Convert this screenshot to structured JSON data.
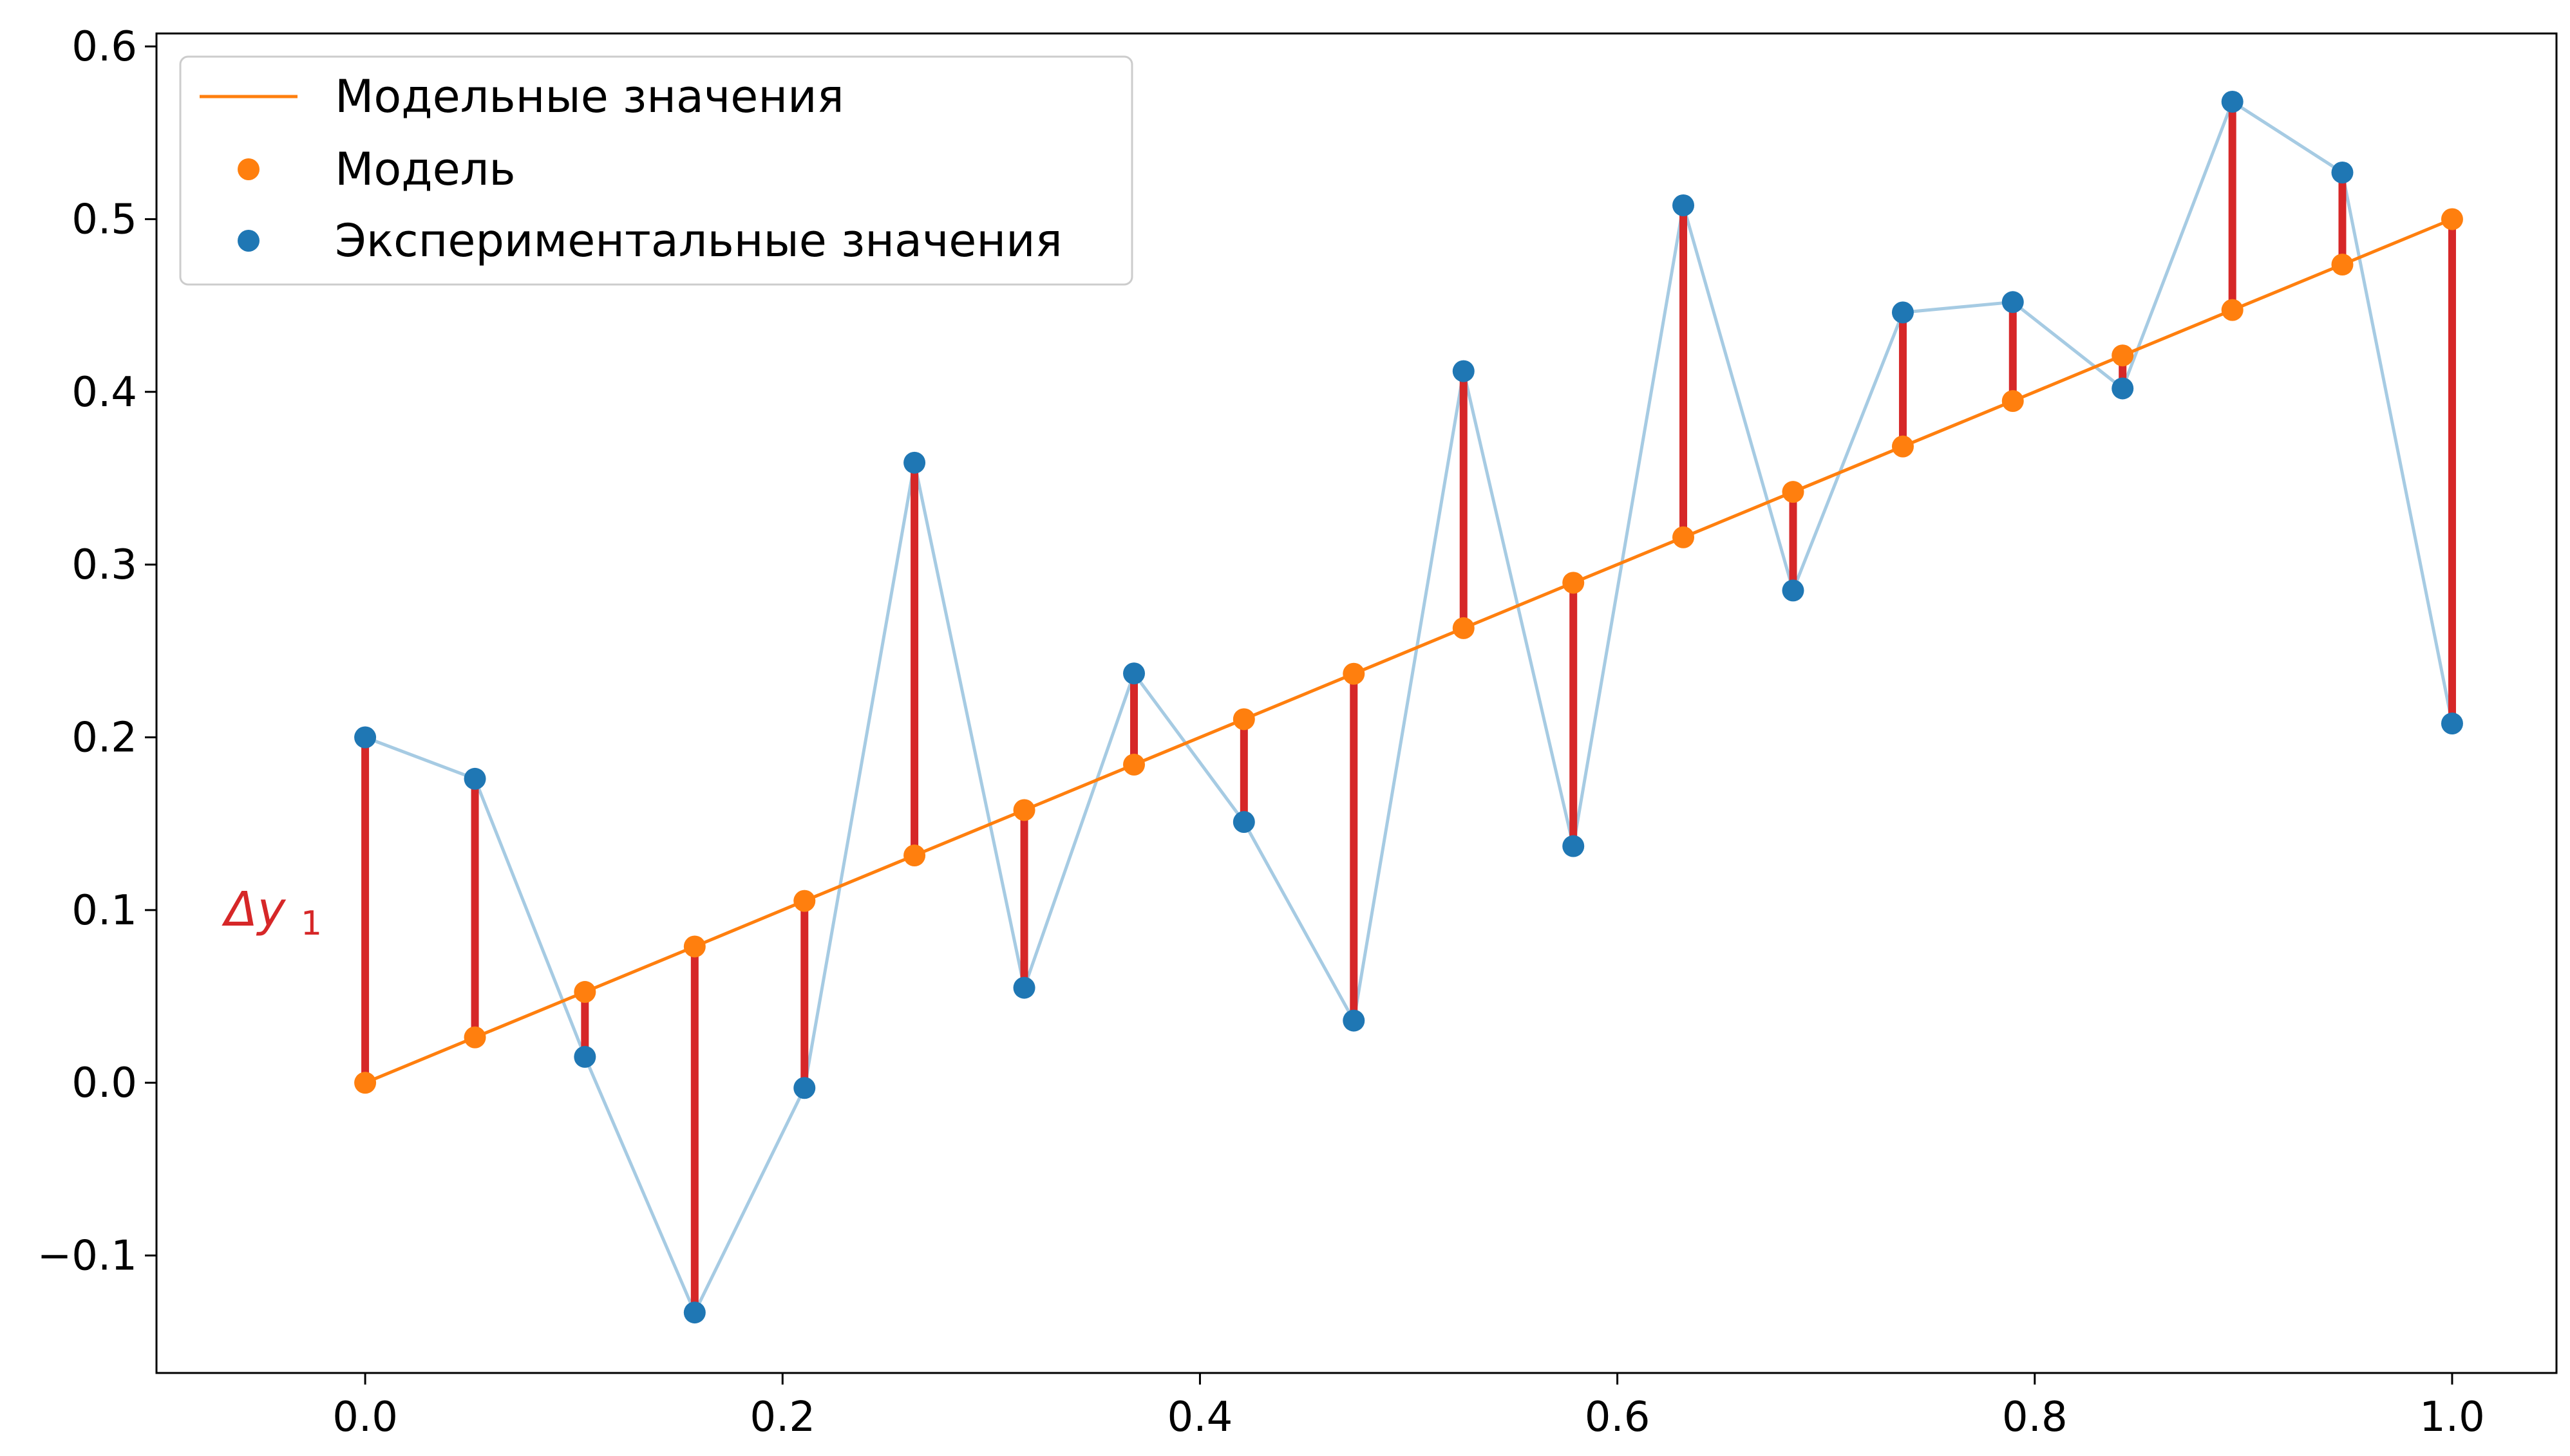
{
  "chart_data": {
    "type": "scatter",
    "xlim": [
      -0.1,
      1.05
    ],
    "ylim": [
      -0.168,
      0.6075
    ],
    "x_ticks": [
      "0.0",
      "0.2",
      "0.4",
      "0.6",
      "0.8",
      "1.0"
    ],
    "x_tick_values": [
      0.0,
      0.2,
      0.4,
      0.6,
      0.8,
      1.0
    ],
    "y_ticks": [
      "−0.1",
      "0.0",
      "0.1",
      "0.2",
      "0.3",
      "0.4",
      "0.5",
      "0.6"
    ],
    "y_tick_values": [
      -0.1,
      0.0,
      0.1,
      0.2,
      0.3,
      0.4,
      0.5,
      0.6
    ],
    "grid": false,
    "legend_position": "top-left",
    "x": [
      0.0,
      0.0526,
      0.1053,
      0.1579,
      0.2105,
      0.2632,
      0.3158,
      0.3684,
      0.4211,
      0.4737,
      0.5263,
      0.5789,
      0.6316,
      0.6842,
      0.7368,
      0.7895,
      0.8421,
      0.8947,
      0.9474,
      1.0
    ],
    "series": [
      {
        "name": "Модельные значения",
        "kind": "line",
        "color": "#ff7f0e",
        "values": [
          0.0,
          0.0263,
          0.0526,
          0.0789,
          0.1053,
          0.1316,
          0.1579,
          0.1842,
          0.2105,
          0.2368,
          0.2632,
          0.2895,
          0.3158,
          0.3421,
          0.3684,
          0.3947,
          0.4211,
          0.4474,
          0.4737,
          0.5
        ]
      },
      {
        "name": "Модель",
        "kind": "scatter",
        "color": "#ff7f0e",
        "values": [
          0.0,
          0.0263,
          0.0526,
          0.0789,
          0.1053,
          0.1316,
          0.1579,
          0.1842,
          0.2105,
          0.2368,
          0.2632,
          0.2895,
          0.3158,
          0.3421,
          0.3684,
          0.3947,
          0.4211,
          0.4474,
          0.4737,
          0.5
        ]
      },
      {
        "name": "Экспериментальные значения",
        "kind": "scatter",
        "color": "#1f77b4",
        "line_color": "#a6cbe3",
        "values": [
          0.2,
          0.176,
          0.015,
          -0.133,
          -0.003,
          0.359,
          0.055,
          0.237,
          0.151,
          0.036,
          0.412,
          0.137,
          0.508,
          0.285,
          0.446,
          0.452,
          0.402,
          0.568,
          0.527,
          0.208
        ]
      }
    ],
    "residual_color": "#d62728",
    "annotation": {
      "text": "Δy",
      "subscript": "1",
      "x": -0.05,
      "y": 0.1,
      "color": "#d62728"
    }
  }
}
